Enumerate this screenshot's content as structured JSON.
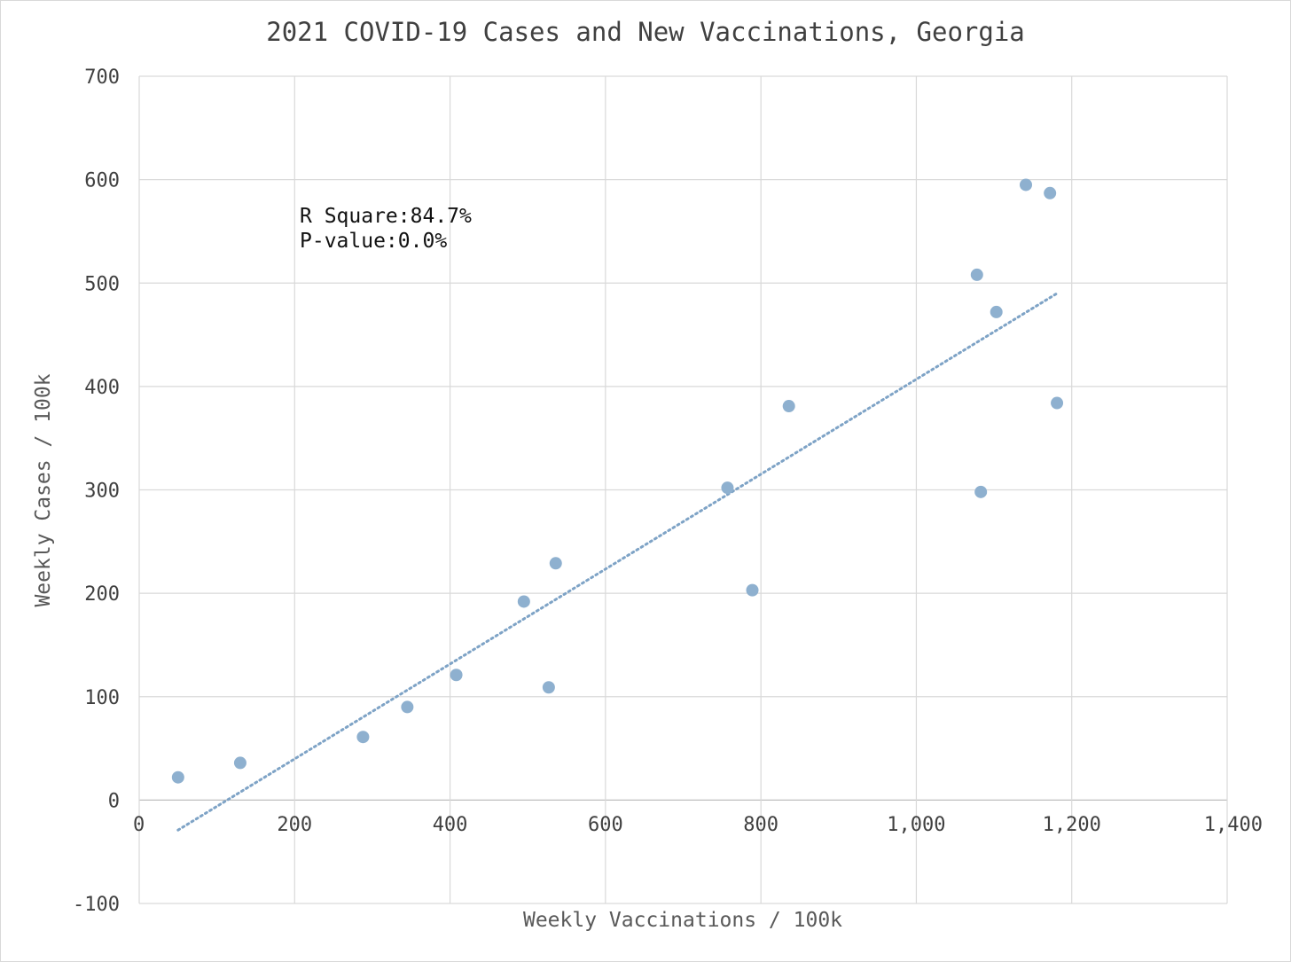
{
  "chart_data": {
    "type": "scatter",
    "title": "2021 COVID-19 Cases and New Vaccinations, Georgia",
    "xlabel": "Weekly Vaccinations / 100k",
    "ylabel": "Weekly Cases / 100k",
    "xlim": [
      0,
      1400
    ],
    "ylim": [
      -100,
      700
    ],
    "x_ticks": [
      "0",
      "200",
      "400",
      "600",
      "800",
      "1,000",
      "1,200",
      "1,400"
    ],
    "y_ticks": [
      "700",
      "600",
      "500",
      "400",
      "300",
      "200",
      "100",
      "0",
      "-100"
    ],
    "x_tick_values": [
      0,
      200,
      400,
      600,
      800,
      1000,
      1200,
      1400
    ],
    "y_tick_values": [
      700,
      600,
      500,
      400,
      300,
      200,
      100,
      0,
      -100
    ],
    "grid": true,
    "point_color": "#8eb0cf",
    "trend_color": "#7ea3c6",
    "grid_color": "#d9d9d9",
    "points": [
      {
        "x": 50,
        "y": 22
      },
      {
        "x": 130,
        "y": 36
      },
      {
        "x": 288,
        "y": 61
      },
      {
        "x": 345,
        "y": 90
      },
      {
        "x": 408,
        "y": 121
      },
      {
        "x": 495,
        "y": 192
      },
      {
        "x": 527,
        "y": 109
      },
      {
        "x": 536,
        "y": 229
      },
      {
        "x": 757,
        "y": 302
      },
      {
        "x": 789,
        "y": 203
      },
      {
        "x": 836,
        "y": 381
      },
      {
        "x": 1078,
        "y": 508
      },
      {
        "x": 1083,
        "y": 298
      },
      {
        "x": 1103,
        "y": 472
      },
      {
        "x": 1141,
        "y": 595
      },
      {
        "x": 1172,
        "y": 587
      },
      {
        "x": 1181,
        "y": 384
      }
    ],
    "trendline": {
      "type": "linear",
      "x": [
        50,
        1181
      ],
      "y": [
        -29,
        490
      ]
    },
    "annotations": {
      "r_square": "R Square:84.7%",
      "p_value": "P-value:0.0%"
    }
  }
}
